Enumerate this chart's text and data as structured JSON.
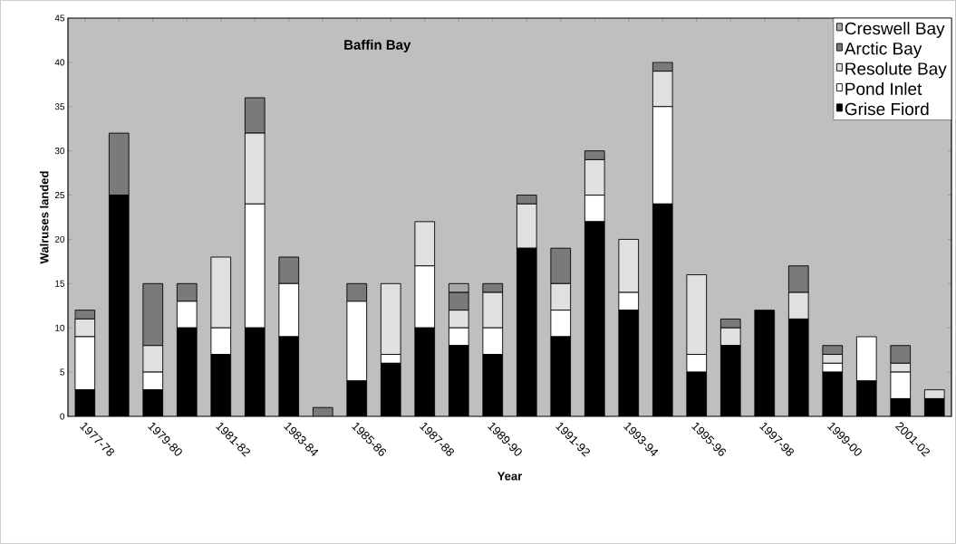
{
  "chart_data": {
    "type": "bar",
    "stacked": true,
    "title": "Baffin Bay",
    "xlabel": "Year",
    "ylabel": "Walruses landed",
    "categories": [
      "1977-78",
      null,
      "1979-80",
      null,
      "1981-82",
      null,
      "1983-84",
      null,
      "1985-86",
      null,
      "1987-88",
      null,
      "1989-90",
      null,
      "1991-92",
      null,
      "1993-94",
      null,
      "1995-96",
      null,
      "1997-98",
      null,
      "1999-00",
      null,
      "2001-02",
      null
    ],
    "series": [
      {
        "name": "Grise Fiord",
        "color": "#000000",
        "values": [
          3,
          25,
          3,
          10,
          7,
          10,
          9,
          0,
          4,
          6,
          10,
          8,
          7,
          19,
          9,
          22,
          12,
          24,
          5,
          8,
          12,
          11,
          5,
          4,
          2,
          2
        ]
      },
      {
        "name": "Pond Inlet",
        "color": "#ffffff",
        "values": [
          6,
          0,
          2,
          3,
          3,
          14,
          6,
          0,
          9,
          1,
          7,
          2,
          3,
          0,
          3,
          3,
          2,
          11,
          2,
          0,
          0,
          0,
          1,
          5,
          3,
          0
        ]
      },
      {
        "name": "Resolute Bay",
        "color": "#e0e0e0",
        "values": [
          2,
          0,
          3,
          0,
          8,
          8,
          0,
          0,
          0,
          8,
          5,
          2,
          4,
          5,
          3,
          4,
          6,
          4,
          9,
          2,
          0,
          3,
          1,
          0,
          1,
          1
        ]
      },
      {
        "name": "Arctic Bay",
        "color": "#7a7a7a",
        "values": [
          1,
          7,
          7,
          2,
          0,
          4,
          3,
          1,
          2,
          0,
          0,
          2,
          1,
          1,
          4,
          1,
          0,
          1,
          0,
          1,
          0,
          3,
          1,
          0,
          2,
          0
        ]
      },
      {
        "name": "Creswell Bay",
        "color": "#a8a8a8",
        "values": [
          0,
          0,
          0,
          0,
          0,
          0,
          0,
          0,
          0,
          0,
          0,
          1,
          0,
          0,
          0,
          0,
          0,
          0,
          0,
          0,
          0,
          0,
          0,
          0,
          0,
          0
        ]
      }
    ],
    "ylim": [
      0,
      45
    ],
    "yticks": [
      0,
      5,
      10,
      15,
      20,
      25,
      30,
      35,
      40,
      45
    ],
    "legend": "top right",
    "grid": false
  }
}
